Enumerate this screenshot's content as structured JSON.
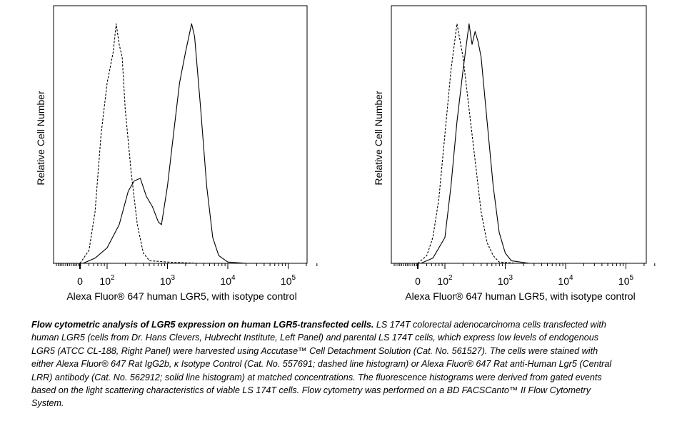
{
  "chart_data": [
    {
      "type": "line",
      "panel": "left",
      "xlabel": "Alexa Fluor® 647 human LGR5, with isotype control",
      "ylabel": "Relative Cell Number",
      "x_scale": "biexponential (x values given as log10 display units)",
      "xlim": [
        1.1,
        5.3
      ],
      "ylim": [
        0,
        100
      ],
      "x_tick_labels": [
        {
          "v": 1.55,
          "base": "0",
          "exp": ""
        },
        {
          "v": 2,
          "base": "10",
          "exp": "2"
        },
        {
          "v": 3,
          "base": "10",
          "exp": "3"
        },
        {
          "v": 4,
          "base": "10",
          "exp": "4"
        },
        {
          "v": 5,
          "base": "10",
          "exp": "5"
        }
      ],
      "series": [
        {
          "name": "Isotype control",
          "style": "dashed",
          "points": [
            [
              1.55,
              0
            ],
            [
              1.7,
              5
            ],
            [
              1.8,
              20
            ],
            [
              1.9,
              50
            ],
            [
              2.0,
              70
            ],
            [
              2.1,
              82
            ],
            [
              2.15,
              93
            ],
            [
              2.2,
              85
            ],
            [
              2.25,
              80
            ],
            [
              2.3,
              60
            ],
            [
              2.4,
              35
            ],
            [
              2.5,
              15
            ],
            [
              2.6,
              4
            ],
            [
              2.7,
              1
            ],
            [
              3.0,
              0.5
            ],
            [
              3.5,
              0
            ],
            [
              5.3,
              0
            ]
          ]
        },
        {
          "name": "Anti-Human Lgr5",
          "style": "solid",
          "points": [
            [
              1.1,
              0
            ],
            [
              1.6,
              0
            ],
            [
              1.8,
              2
            ],
            [
              2.0,
              6
            ],
            [
              2.2,
              15
            ],
            [
              2.35,
              28
            ],
            [
              2.45,
              32
            ],
            [
              2.55,
              33
            ],
            [
              2.65,
              26
            ],
            [
              2.75,
              22
            ],
            [
              2.85,
              16
            ],
            [
              2.9,
              15
            ],
            [
              3.0,
              30
            ],
            [
              3.1,
              50
            ],
            [
              3.2,
              70
            ],
            [
              3.3,
              82
            ],
            [
              3.4,
              93
            ],
            [
              3.45,
              88
            ],
            [
              3.55,
              60
            ],
            [
              3.65,
              30
            ],
            [
              3.75,
              10
            ],
            [
              3.85,
              3
            ],
            [
              4.0,
              0.5
            ],
            [
              4.3,
              0
            ],
            [
              5.3,
              0
            ]
          ]
        }
      ]
    },
    {
      "type": "line",
      "panel": "right",
      "xlabel": "Alexa Fluor® 647 human LGR5, with isotype control",
      "ylabel": "Relative Cell Number",
      "x_scale": "biexponential (x values given as log10 display units)",
      "xlim": [
        1.1,
        5.3
      ],
      "ylim": [
        0,
        100
      ],
      "x_tick_labels": [
        {
          "v": 1.55,
          "base": "0",
          "exp": ""
        },
        {
          "v": 2,
          "base": "10",
          "exp": "2"
        },
        {
          "v": 3,
          "base": "10",
          "exp": "3"
        },
        {
          "v": 4,
          "base": "10",
          "exp": "4"
        },
        {
          "v": 5,
          "base": "10",
          "exp": "5"
        }
      ],
      "series": [
        {
          "name": "Isotype control",
          "style": "dashed",
          "points": [
            [
              1.55,
              0
            ],
            [
              1.7,
              3
            ],
            [
              1.8,
              10
            ],
            [
              1.9,
              25
            ],
            [
              2.0,
              50
            ],
            [
              2.1,
              75
            ],
            [
              2.2,
              93
            ],
            [
              2.3,
              80
            ],
            [
              2.4,
              60
            ],
            [
              2.5,
              40
            ],
            [
              2.6,
              20
            ],
            [
              2.7,
              8
            ],
            [
              2.8,
              3
            ],
            [
              2.9,
              0.5
            ],
            [
              3.2,
              0
            ],
            [
              5.3,
              0
            ]
          ]
        },
        {
          "name": "Anti-Human Lgr5",
          "style": "solid",
          "points": [
            [
              1.1,
              0
            ],
            [
              1.6,
              0
            ],
            [
              1.8,
              2
            ],
            [
              2.0,
              10
            ],
            [
              2.1,
              30
            ],
            [
              2.2,
              55
            ],
            [
              2.3,
              75
            ],
            [
              2.4,
              93
            ],
            [
              2.45,
              85
            ],
            [
              2.5,
              90
            ],
            [
              2.55,
              86
            ],
            [
              2.6,
              80
            ],
            [
              2.7,
              55
            ],
            [
              2.8,
              30
            ],
            [
              2.9,
              12
            ],
            [
              3.0,
              4
            ],
            [
              3.1,
              1
            ],
            [
              3.4,
              0
            ],
            [
              5.3,
              0
            ]
          ]
        }
      ]
    }
  ],
  "caption": {
    "title": "Flow cytometric analysis of LGR5 expression on human LGR5-transfected cells.",
    "body": " LS 174T colorectal adenocarcinoma cells transfected with human LGR5 (cells from Dr. Hans Clevers, Hubrecht Institute, Left Panel) and parental LS 174T cells, which express low levels of endogenous LGR5 (ATCC CL-188, Right Panel) were harvested using Accutase™ Cell Detachment Solution (Cat. No. 561527). The cells were stained with either Alexa Fluor® 647 Rat IgG2b, κ Isotype Control (Cat. No. 557691; dashed line histogram) or Alexa Fluor® 647 Rat anti-Human Lgr5 (Central LRR) antibody (Cat. No. 562912; solid line histogram) at matched concentrations. The fluorescence histograms were derived from gated events based on the light scattering characteristics of viable LS 174T cells. Flow cytometry was performed on a BD FACSCanto™ II Flow Cytometry System."
  }
}
